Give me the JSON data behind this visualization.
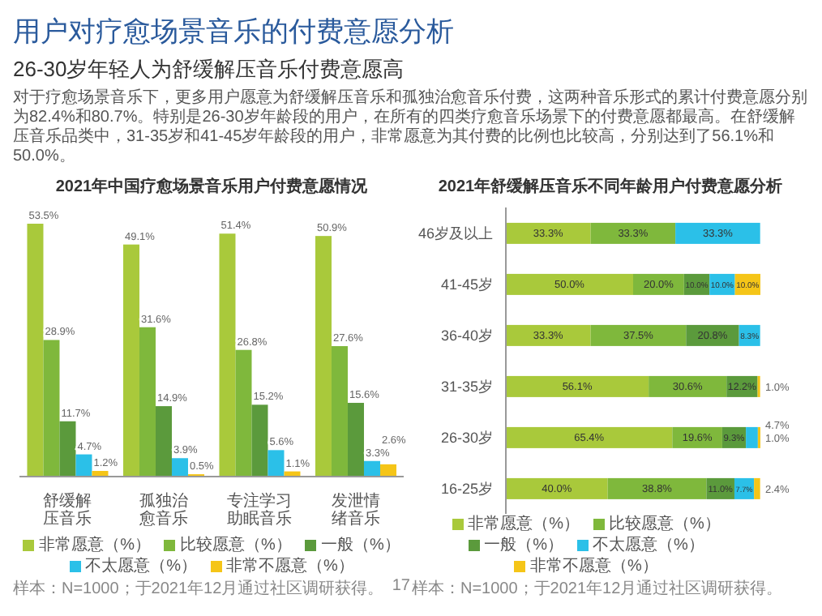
{
  "chart_data": [
    {
      "type": "bar",
      "title": "2021年中国疗愈场景音乐用户付费意愿情况",
      "annotations": [
        "用户对疗愈场景音乐的付费意愿分析",
        "26-30岁年轻人为舒缓解压音乐付费意愿高",
        "对于疗愈场景音乐下，更多用户愿意为舒缓解压音乐和孤独治愈音乐付费，这两种音乐形式的累计付费意愿分别为82.4%和80.7%。特别是26-30岁年龄段的用户，在所有的四类疗愈音乐场景下的付费意愿都最高。在舒缓解压音乐品类中，31-35岁和41-45岁年龄段的用户，非常愿意为其付费的比例也比较高，分别达到了56.1%和50.0%。",
        "样本：N=1000；于2021年12月通过社区调研获得。",
        "17"
      ],
      "categories": [
        "舒缓解压音乐",
        "孤独治愈音乐",
        "专注学习助眠音乐",
        "发泄情绪音乐"
      ],
      "series": [
        {
          "name": "非常愿意（%）",
          "color": "#a9c93b",
          "values": [
            53.5,
            49.1,
            51.4,
            50.9
          ],
          "value_labels": [
            "53.5%",
            "49.1%",
            "51.4%",
            "50.9%"
          ]
        },
        {
          "name": "比较愿意（%）",
          "color": "#7fb83c",
          "values": [
            28.9,
            31.6,
            26.8,
            27.6
          ],
          "value_labels": [
            "28.9%",
            "31.6%",
            "26.8%",
            "27.6%"
          ]
        },
        {
          "name": "一般（%）",
          "color": "#5b9a3c",
          "values": [
            11.7,
            14.9,
            15.2,
            15.6
          ],
          "value_labels": [
            "11.7%",
            "14.9%",
            "15.2%",
            "15.6%"
          ]
        },
        {
          "name": "不太愿意（%）",
          "color": "#2bc0e8",
          "values": [
            4.7,
            3.9,
            5.6,
            3.3
          ],
          "value_labels": [
            "4.7%",
            "3.9%",
            "5.6%",
            "3.3%"
          ]
        },
        {
          "name": "非常不愿意（%）",
          "color": "#f5c518",
          "values": [
            1.2,
            0.5,
            1.1,
            2.6
          ],
          "value_labels": [
            "1.2%",
            "0.5%",
            "1.1%",
            "2.6%"
          ]
        }
      ],
      "legend": "bottom"
    },
    {
      "type": "bar",
      "title": "2021年舒缓解压音乐不同年龄用户付费意愿分析",
      "orientation": "horizontal",
      "stacked": true,
      "annotations": [
        "样本：N=1000；于2021年12月通过社区调研获得。"
      ],
      "categories": [
        "46岁及以上",
        "41-45岁",
        "36-40岁",
        "31-35岁",
        "26-30岁",
        "16-25岁"
      ],
      "series": [
        {
          "name": "非常愿意（%）",
          "color": "#a9c93b",
          "values": [
            33.3,
            50.0,
            33.3,
            56.1,
            65.4,
            40.0
          ],
          "value_labels": [
            "33.3%",
            "50.0%",
            "33.3%",
            "56.1%",
            "65.4%",
            "40.0%"
          ]
        },
        {
          "name": "比较愿意（%）",
          "color": "#7fb83c",
          "values": [
            33.3,
            20.0,
            37.5,
            30.6,
            19.6,
            38.8
          ],
          "value_labels": [
            "33.3%",
            "20.0%",
            "37.5%",
            "30.6%",
            "19.6%",
            "38.8%"
          ]
        },
        {
          "name": "一般（%）",
          "color": "#5b9a3c",
          "values": [
            null,
            10.0,
            20.8,
            12.2,
            9.3,
            11.0
          ],
          "value_labels": [
            null,
            "10.0%",
            "20.8%",
            "12.2%",
            "9.3%",
            "11.0%"
          ]
        },
        {
          "name": "不太愿意（%）",
          "color": "#2bc0e8",
          "values": [
            33.3,
            10.0,
            8.3,
            null,
            4.7,
            7.7
          ],
          "value_labels": [
            "33.3%",
            "10.0%",
            "8.3%",
            null,
            "4.7%",
            "7.7%"
          ]
        },
        {
          "name": "非常不愿意（%）",
          "color": "#f5c518",
          "values": [
            null,
            10.0,
            null,
            1.0,
            1.0,
            2.4
          ],
          "value_labels": [
            null,
            "10.0%",
            null,
            "1.0%",
            "1.0%",
            "2.4%"
          ]
        }
      ],
      "legend": "bottom"
    }
  ]
}
